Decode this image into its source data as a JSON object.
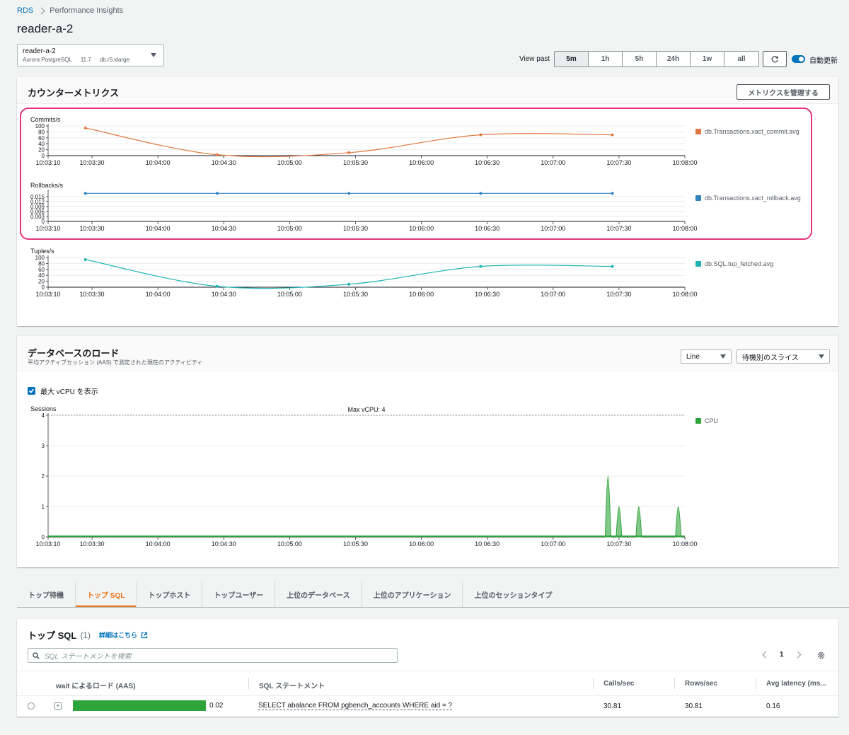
{
  "breadcrumb": {
    "root": "RDS",
    "current": "Performance Insights"
  },
  "page_title": "reader-a-2",
  "instance": {
    "name": "reader-a-2",
    "engine": "Aurora PostgreSQL",
    "version": "11.7",
    "class": "db.r5.xlarge"
  },
  "view_past": {
    "label": "View past",
    "options": [
      "5m",
      "1h",
      "5h",
      "24h",
      "1w",
      "all"
    ],
    "selected": "5m"
  },
  "auto_refresh": {
    "label": "自動更新",
    "enabled": true
  },
  "counter_metrics": {
    "title": "カウンターメトリクス",
    "manage_button": "メトリクスを管理する"
  },
  "db_load": {
    "title": "データベースのロード",
    "subtitle": "平均アクティブセッション (AAS) で測定された現在のアクティビティ",
    "chart_type_select": "Line",
    "slice_select": "待機別のスライス",
    "show_max_vcpu_label": "最大 vCPU を表示",
    "show_max_vcpu": true
  },
  "chart_data": [
    {
      "type": "line",
      "ylabel": "Commits/s",
      "x": [
        "10:03:27",
        "10:04:27",
        "10:05:27",
        "10:06:27",
        "10:07:27"
      ],
      "series": [
        {
          "name": "db.Transactions.xact_commit.avg",
          "color": "#e07941",
          "values": [
            93,
            3,
            10,
            70,
            70
          ]
        }
      ],
      "x_ticks": [
        "10:03:10",
        "10:03:30",
        "10:04:00",
        "10:04:30",
        "10:05:00",
        "10:05:30",
        "10:06:00",
        "10:06:30",
        "10:07:00",
        "10:07:30",
        "10:08:00"
      ],
      "y_ticks": [
        "100",
        "80",
        "60",
        "40",
        "20",
        "0"
      ],
      "ylim": [
        0,
        100
      ],
      "legend": "right"
    },
    {
      "type": "line",
      "ylabel": "Rollbacks/s",
      "x": [
        "10:03:27",
        "10:04:27",
        "10:05:27",
        "10:06:27",
        "10:07:27"
      ],
      "series": [
        {
          "name": "db.Transactions.xact_rollback.avg",
          "color": "#3184c2",
          "values": [
            0.017,
            0.017,
            0.017,
            0.017,
            0.017
          ]
        }
      ],
      "x_ticks": [
        "10:03:10",
        "10:03:30",
        "10:04:00",
        "10:04:30",
        "10:05:00",
        "10:05:30",
        "10:06:00",
        "10:06:30",
        "10:07:00",
        "10:07:30",
        "10:08:00"
      ],
      "y_ticks": [
        "0.015",
        "0.012",
        "0.009",
        "0.006",
        "0.003",
        "0"
      ],
      "ylim": [
        0,
        0.018
      ],
      "legend": "right"
    },
    {
      "type": "line",
      "ylabel": "Tuples/s",
      "x": [
        "10:03:27",
        "10:04:27",
        "10:05:27",
        "10:06:27",
        "10:07:27"
      ],
      "series": [
        {
          "name": "db.SQL.tup_fetched.avg",
          "color": "#1eb4b4",
          "values": [
            93,
            3,
            10,
            70,
            70
          ]
        }
      ],
      "x_ticks": [
        "10:03:10",
        "10:03:30",
        "10:04:00",
        "10:04:30",
        "10:05:00",
        "10:05:30",
        "10:06:00",
        "10:06:30",
        "10:07:00",
        "10:07:30",
        "10:08:00"
      ],
      "y_ticks": [
        "100",
        "80",
        "60",
        "40",
        "20",
        "0"
      ],
      "ylim": [
        0,
        100
      ],
      "legend": "right"
    },
    {
      "type": "area",
      "ylabel": "Sessions",
      "annotation": "Max vCPU: 4",
      "max_vcpu": 4,
      "series": [
        {
          "name": "CPU",
          "color": "#2ea43a",
          "spikes": [
            {
              "x": "10:07:25",
              "value": 2
            },
            {
              "x": "10:07:30",
              "value": 1
            },
            {
              "x": "10:07:39",
              "value": 1
            },
            {
              "x": "10:07:57",
              "value": 1
            }
          ]
        }
      ],
      "x_ticks": [
        "10:03:10",
        "10:03:30",
        "10:04:00",
        "10:04:30",
        "10:05:00",
        "10:05:30",
        "10:06:00",
        "10:06:30",
        "10:07:00",
        "10:07:30",
        "10:08:00"
      ],
      "y_ticks": [
        "4",
        "3",
        "2",
        "1",
        "0"
      ],
      "ylim": [
        0,
        4
      ],
      "legend": "right"
    }
  ],
  "tabs": [
    "トップ待機",
    "トップ SQL",
    "トップホスト",
    "トップユーザー",
    "上位のデータベース",
    "上位のアプリケーション",
    "上位のセッションタイプ"
  ],
  "active_tab": "トップ SQL",
  "top_sql": {
    "title": "トップ SQL",
    "count": "(1)",
    "info_link": "詳細はこちら",
    "search_placeholder": "SQL ステートメントを検索",
    "page": "1",
    "columns": [
      "wait によるロード (AAS)",
      "SQL ステートメント",
      "Calls/sec",
      "Rows/sec",
      "Avg latency (ms..."
    ],
    "rows": [
      {
        "load": "0.02",
        "load_fraction": 1.0,
        "statement": "SELECT abalance FROM pgbench_accounts WHERE aid = ?",
        "calls": "30.81",
        "rows": "30.81",
        "latency": "0.16"
      }
    ]
  },
  "colors": {
    "link": "#0073bb",
    "accent": "#ec7211",
    "highlight": "#e8337b",
    "cpu": "#2ea43a"
  }
}
